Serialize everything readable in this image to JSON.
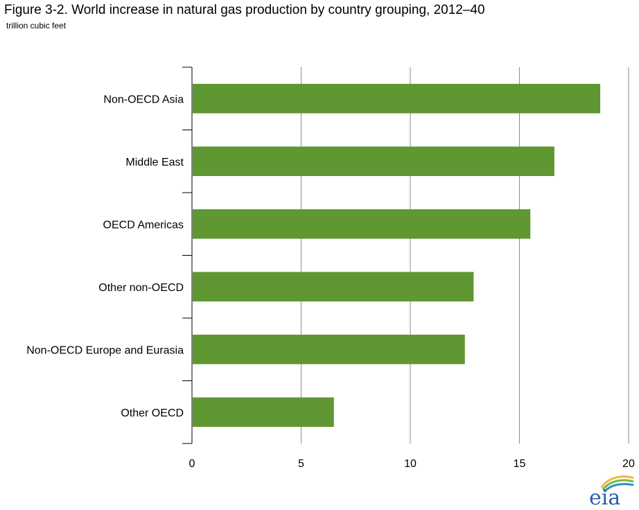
{
  "title": "Figure 3-2. World increase in natural gas production by country grouping, 2012–40",
  "subtitle": "trillion cubic feet",
  "logo_text": "eia",
  "colors": {
    "bar": "#5f9732",
    "grid": "#8c8c8c",
    "axis": "#000000"
  },
  "chart_data": {
    "type": "bar",
    "orientation": "horizontal",
    "categories": [
      "Non-OECD Asia",
      "Middle East",
      "OECD Americas",
      "Other non-OECD",
      "Non-OECD Europe and Eurasia",
      "Other OECD"
    ],
    "values": [
      18.7,
      16.6,
      15.5,
      12.9,
      12.5,
      6.5
    ],
    "xlim": [
      0,
      20
    ],
    "xticks": [
      0,
      5,
      10,
      15,
      20
    ],
    "xlabel": "",
    "ylabel": "",
    "grid": "vertical",
    "legend": "none"
  }
}
